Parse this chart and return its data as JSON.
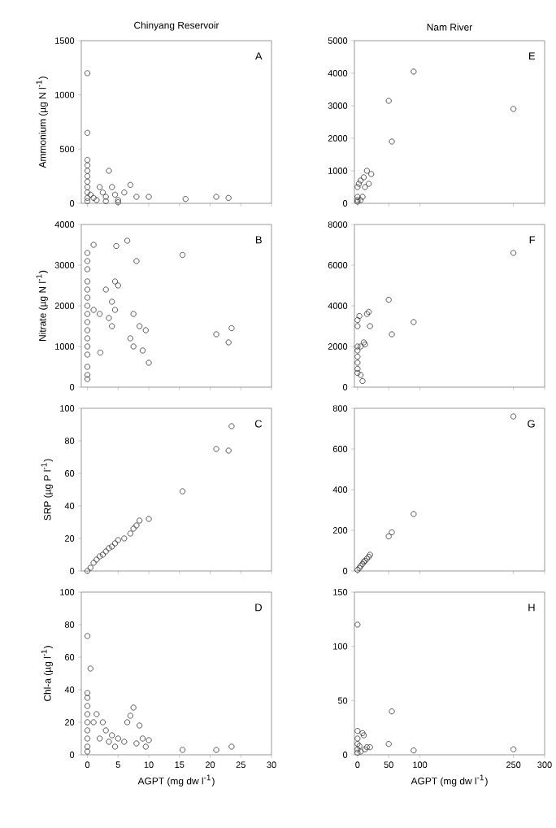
{
  "chart_data": [
    {
      "type": "scatter",
      "title": "Chinyang Reservoir",
      "ylabel": "Ammonium (µg N l$^{-1}$)",
      "annotations": [
        "A"
      ],
      "marker": "circle",
      "tick_labels": "y",
      "xlim": [
        -1,
        30
      ],
      "xticks": [
        0,
        5,
        10,
        15,
        20,
        25,
        30
      ],
      "ylim": [
        0,
        1500
      ],
      "yticks": [
        0,
        500,
        1000,
        1500
      ],
      "series": [
        {
          "color": "#333333",
          "x": [
            0,
            0,
            0,
            0,
            0,
            0,
            0,
            0,
            0,
            0,
            0,
            0.5,
            1,
            1.5,
            2,
            2.5,
            3,
            3,
            3.5,
            4,
            4.5,
            5,
            5,
            6,
            7,
            8,
            10,
            16,
            21,
            23
          ],
          "values": [
            1200,
            650,
            400,
            350,
            300,
            250,
            200,
            150,
            100,
            50,
            20,
            80,
            50,
            30,
            150,
            100,
            60,
            20,
            300,
            150,
            80,
            30,
            10,
            100,
            170,
            60,
            60,
            40,
            60,
            50
          ]
        }
      ]
    },
    {
      "type": "scatter",
      "title": "Nam River",
      "annotations": [
        "E"
      ],
      "marker": "circle",
      "tick_labels": "y",
      "xlim": [
        -5,
        300
      ],
      "xticks": [
        0,
        50,
        100,
        250,
        300
      ],
      "ylim": [
        0,
        5000
      ],
      "yticks": [
        0,
        1000,
        2000,
        3000,
        4000,
        5000
      ],
      "series": [
        {
          "color": "#333333",
          "x": [
            0,
            0,
            0,
            0,
            2,
            5,
            5,
            8,
            10,
            12,
            15,
            18,
            22,
            50,
            55,
            90,
            250
          ],
          "values": [
            50,
            100,
            200,
            500,
            600,
            100,
            700,
            200,
            800,
            500,
            1000,
            600,
            900,
            3150,
            1900,
            4050,
            2900
          ]
        }
      ]
    },
    {
      "type": "scatter",
      "ylabel": "Nitrate (µg N l$^{-1}$)",
      "annotations": [
        "B"
      ],
      "marker": "circle",
      "tick_labels": "y",
      "xlim": [
        -1,
        30
      ],
      "xticks": [
        0,
        5,
        10,
        15,
        20,
        25,
        30
      ],
      "ylim": [
        0,
        4000
      ],
      "yticks": [
        0,
        1000,
        2000,
        3000,
        4000
      ],
      "series": [
        {
          "color": "#333333",
          "x": [
            0,
            0,
            0,
            0,
            0,
            0,
            0,
            0,
            0,
            0,
            0,
            0,
            0,
            0,
            0,
            0,
            1,
            1,
            2,
            2.1,
            3,
            3.5,
            4,
            4,
            4.5,
            4.5,
            5,
            4.7,
            6.5,
            7,
            7.5,
            8,
            7.5,
            8.5,
            9,
            9.5,
            10,
            15.5,
            21,
            23,
            23.5
          ],
          "values": [
            3300,
            3100,
            2900,
            2600,
            2400,
            2200,
            2000,
            1800,
            1600,
            1400,
            1200,
            1000,
            800,
            500,
            300,
            200,
            3500,
            1900,
            1800,
            850,
            2400,
            1700,
            2100,
            1500,
            2600,
            1900,
            2500,
            3470,
            3600,
            1200,
            1000,
            3100,
            1800,
            1500,
            900,
            1400,
            600,
            3250,
            1300,
            1100,
            1450
          ]
        }
      ]
    },
    {
      "type": "scatter",
      "annotations": [
        "F"
      ],
      "marker": "circle",
      "tick_labels": "y",
      "xlim": [
        -5,
        300
      ],
      "xticks": [
        0,
        50,
        100,
        250,
        300
      ],
      "ylim": [
        0,
        8000
      ],
      "yticks": [
        0,
        2000,
        4000,
        6000,
        8000
      ],
      "series": [
        {
          "color": "#333333",
          "x": [
            0,
            0,
            0,
            0,
            0,
            0,
            0,
            0,
            3,
            5,
            5,
            8,
            10,
            12,
            15,
            18,
            20,
            50,
            55,
            90,
            250
          ],
          "values": [
            3300,
            3000,
            2000,
            1800,
            1500,
            1200,
            900,
            700,
            3500,
            2000,
            600,
            300,
            2200,
            2100,
            3600,
            3700,
            3000,
            4300,
            2600,
            3200,
            6600
          ]
        }
      ]
    },
    {
      "type": "scatter",
      "ylabel": "SRP (µg P l$^{-1}$)",
      "annotations": [
        "C"
      ],
      "marker": "circle",
      "tick_labels": "y",
      "xlim": [
        -1,
        30
      ],
      "xticks": [
        0,
        5,
        10,
        15,
        20,
        25,
        30
      ],
      "ylim": [
        0,
        100
      ],
      "yticks": [
        0,
        20,
        40,
        60,
        80,
        100
      ],
      "series": [
        {
          "color": "#333333",
          "x": [
            0,
            0.5,
            1,
            1.5,
            2,
            2.5,
            3,
            3.5,
            4,
            4.5,
            5,
            6,
            7,
            7.5,
            8,
            8.5,
            10,
            15.5,
            21,
            23,
            23.5
          ],
          "values": [
            0,
            2,
            5,
            7,
            9,
            10,
            12,
            14,
            15,
            17,
            19,
            20,
            23,
            26,
            28,
            31,
            32,
            49,
            75,
            74,
            89
          ]
        }
      ]
    },
    {
      "type": "scatter",
      "annotations": [
        "G"
      ],
      "marker": "circle",
      "tick_labels": "y",
      "xlim": [
        -5,
        300
      ],
      "xticks": [
        0,
        50,
        100,
        250,
        300
      ],
      "ylim": [
        0,
        800
      ],
      "yticks": [
        0,
        200,
        400,
        600,
        800
      ],
      "series": [
        {
          "color": "#333333",
          "x": [
            0,
            3,
            5,
            8,
            10,
            12,
            15,
            18,
            20,
            50,
            55,
            90,
            250
          ],
          "values": [
            5,
            15,
            25,
            35,
            45,
            50,
            60,
            70,
            80,
            170,
            190,
            280,
            760
          ]
        }
      ]
    },
    {
      "type": "scatter",
      "xlabel": "AGPT (mg dw l$^{-1}$)",
      "ylabel": "Chl-a (µg l$^{-1}$)",
      "annotations": [
        "D"
      ],
      "marker": "circle",
      "xlim": [
        -1,
        30
      ],
      "xticks": [
        0,
        5,
        10,
        15,
        20,
        25,
        30
      ],
      "ylim": [
        0,
        100
      ],
      "yticks": [
        0,
        20,
        40,
        60,
        80,
        100
      ],
      "series": [
        {
          "color": "#333333",
          "x": [
            0,
            0.5,
            0,
            0,
            0,
            0,
            0,
            0,
            0,
            0,
            0,
            1,
            1.5,
            2,
            2.5,
            3,
            3.5,
            4,
            4.5,
            5,
            6,
            6.5,
            7,
            7.5,
            8,
            8.5,
            9,
            9.5,
            10,
            15.5,
            21,
            23.5
          ],
          "values": [
            73,
            53,
            38,
            35,
            30,
            25,
            20,
            15,
            10,
            5,
            2,
            20,
            25,
            10,
            20,
            15,
            8,
            12,
            5,
            10,
            8,
            20,
            24,
            29,
            7,
            18,
            10,
            5,
            9,
            3,
            3,
            5
          ]
        }
      ]
    },
    {
      "type": "scatter",
      "xlabel": "AGPT (mg dw l$^{-1}$)",
      "annotations": [
        "H"
      ],
      "marker": "circle",
      "xlim": [
        -5,
        300
      ],
      "xticks": [
        0,
        50,
        100,
        250,
        300
      ],
      "ylim": [
        0,
        150
      ],
      "yticks": [
        0,
        50,
        100,
        150
      ],
      "series": [
        {
          "color": "#333333",
          "x": [
            0,
            0,
            0,
            0,
            0,
            0,
            3,
            5,
            8,
            10,
            12,
            15,
            20,
            50,
            55,
            90,
            250
          ],
          "values": [
            120,
            22,
            15,
            10,
            5,
            2,
            8,
            3,
            20,
            18,
            5,
            7,
            7,
            10,
            40,
            4,
            5
          ]
        }
      ]
    }
  ]
}
